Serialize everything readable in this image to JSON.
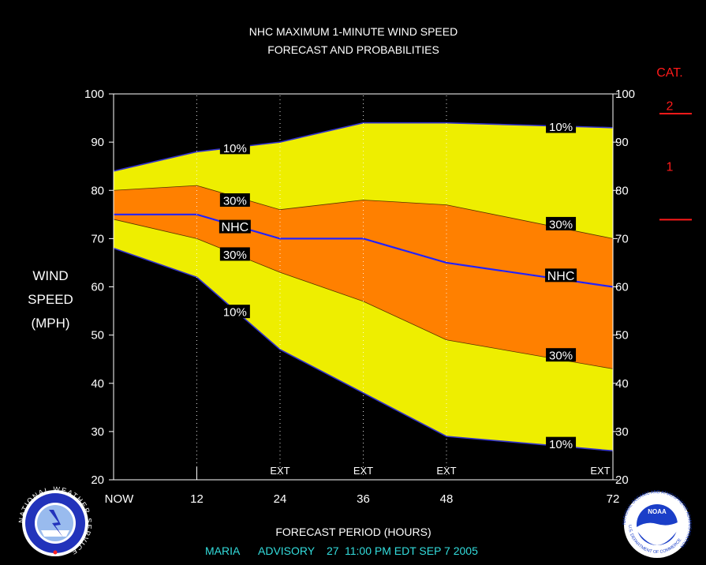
{
  "chart_data": {
    "type": "area",
    "title": "NHC MAXIMUM 1-MINUTE WIND SPEED",
    "subtitle": "FORECAST AND PROBABILITIES",
    "ylabel_lines": [
      "WIND",
      "SPEED",
      "(MPH)"
    ],
    "xlabel": "FORECAST PERIOD (HOURS)",
    "advisory": {
      "name": "MARIA",
      "label": "ADVISORY",
      "number": "27",
      "time": "11:00 PM EDT SEP 7 2005"
    },
    "ylim": [
      20,
      100
    ],
    "xlim": [
      0,
      72
    ],
    "yticks": [
      20,
      30,
      40,
      50,
      60,
      70,
      80,
      90,
      100
    ],
    "xticks": [
      {
        "x": 0,
        "label": "NOW"
      },
      {
        "x": 12,
        "label": "12"
      },
      {
        "x": 24,
        "label": "24"
      },
      {
        "x": 36,
        "label": "36"
      },
      {
        "x": 48,
        "label": "48"
      },
      {
        "x": 72,
        "label": "72"
      }
    ],
    "ext_marks": [
      {
        "x": 24,
        "label": "EXT"
      },
      {
        "x": 36,
        "label": "EXT"
      },
      {
        "x": 48,
        "label": "EXT"
      },
      {
        "x": 72,
        "label": "EXT"
      }
    ],
    "hours": [
      0,
      12,
      24,
      36,
      48,
      72
    ],
    "series": [
      {
        "name": "10%",
        "values": [
          84,
          88,
          90,
          94,
          94,
          93
        ]
      },
      {
        "name": "30%",
        "values": [
          80,
          81,
          76,
          78,
          77,
          70
        ]
      },
      {
        "name": "NHC",
        "values": [
          75,
          75,
          70,
          70,
          65,
          60
        ]
      },
      {
        "name": "30%",
        "values": [
          74,
          70,
          63,
          57,
          49,
          43
        ]
      },
      {
        "name": "10%",
        "values": [
          68,
          62,
          47,
          38,
          29,
          26
        ]
      }
    ],
    "band_labels": [
      {
        "text": "10%",
        "x": 17.5,
        "y": 88.9
      },
      {
        "text": "30%",
        "x": 17.5,
        "y": 78
      },
      {
        "text": "NHC",
        "x": 17.5,
        "y": 72.5
      },
      {
        "text": "30%",
        "x": 17.5,
        "y": 66.8
      },
      {
        "text": "10%",
        "x": 17.5,
        "y": 54.9
      },
      {
        "text": "10%",
        "x": 64.5,
        "y": 93.3
      },
      {
        "text": "30%",
        "x": 64.5,
        "y": 73.1
      },
      {
        "text": "NHC",
        "x": 64.5,
        "y": 62.4
      },
      {
        "text": "30%",
        "x": 64.5,
        "y": 45.9
      },
      {
        "text": "10%",
        "x": 64.5,
        "y": 27.5
      }
    ],
    "categories_scale": {
      "title": "CAT.",
      "levels": [
        {
          "label": "2",
          "threshold": 96
        },
        {
          "label": "1",
          "threshold": 74
        }
      ]
    },
    "colors": {
      "background": "#000000",
      "outer_band": "#eeee00",
      "inner_band": "#ff8000",
      "nhc_line": "#2222ff",
      "edge_line": "#3333cc",
      "category": "#ff1a1a",
      "advisory_text": "#33dddd",
      "plot_frame": "#ffffff"
    }
  },
  "logos": {
    "left": "nws-logo",
    "right": "noaa-logo",
    "left_text": "NATIONAL WEATHER SERVICE",
    "right_text": "NATIONAL OCEANIC AND ATMOSPHERIC ADMINISTRATION",
    "right_bottom_text": "U.S. DEPARTMENT OF COMMERCE",
    "right_center": "NOAA"
  }
}
